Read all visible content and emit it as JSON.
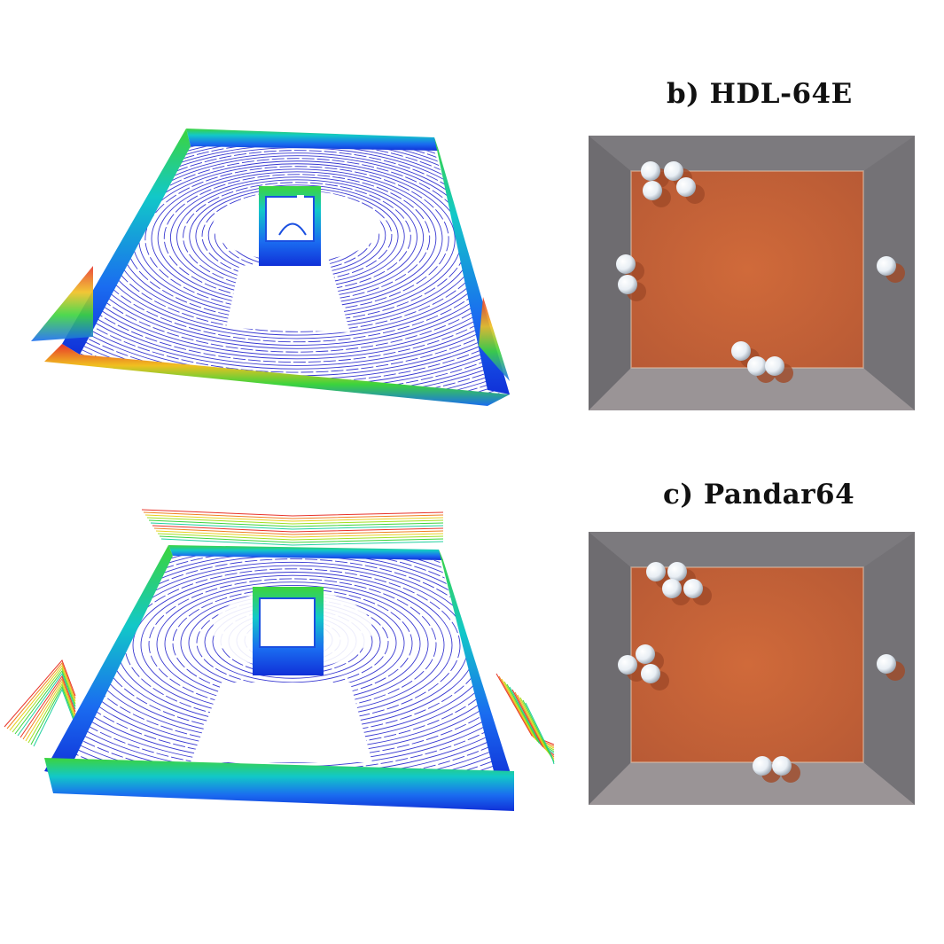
{
  "figure": {
    "panels": [
      {
        "id": "b",
        "title": "b) HDL-64E"
      },
      {
        "id": "c",
        "title": "c) Pandar64"
      }
    ]
  }
}
